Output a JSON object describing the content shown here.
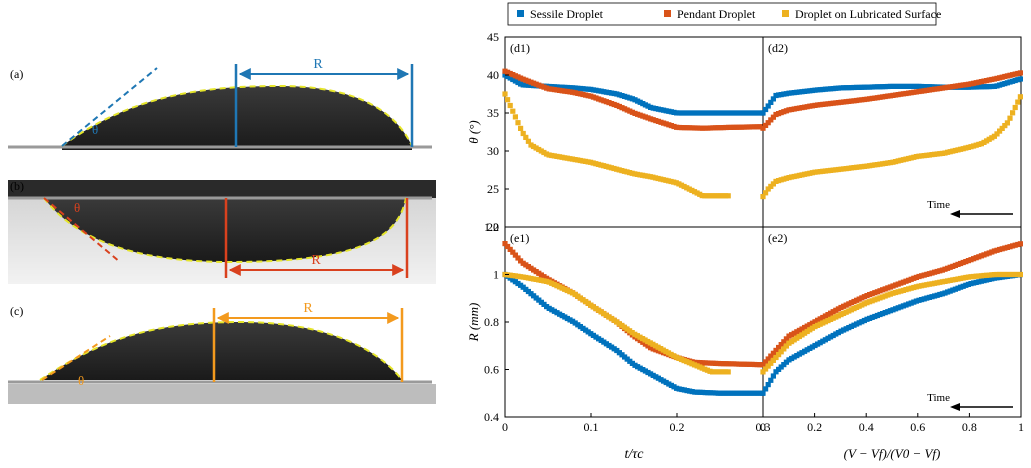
{
  "legend": [
    {
      "name": "Sessile Droplet",
      "color": "#0072BD"
    },
    {
      "name": "Pendant Droplet",
      "color": "#D95319"
    },
    {
      "name": "Droplet on Lubricated Surface",
      "color": "#EDB120"
    }
  ],
  "photos": {
    "a": {
      "label": "(a)",
      "r_label": "R",
      "theta_label": "θ",
      "color": "#1f77b4"
    },
    "b": {
      "label": "(b)",
      "r_label": "R",
      "theta_label": "θ",
      "color": "#d9411e"
    },
    "c": {
      "label": "(c)",
      "r_label": "R",
      "theta_label": "θ",
      "color": "#f39a1e"
    }
  },
  "time_label": "Time",
  "chart_data": [
    {
      "panel": "(d1)",
      "type": "scatter",
      "ylabel": "θ (°)",
      "xlim": [
        0,
        0.3
      ],
      "ylim": [
        20,
        45
      ],
      "yticks": [
        "45",
        "40",
        "35",
        "30",
        "25",
        "20"
      ],
      "series": [
        {
          "name": "Sessile Droplet",
          "x": [
            0,
            0.02,
            0.05,
            0.08,
            0.1,
            0.13,
            0.15,
            0.17,
            0.2,
            0.23,
            0.26,
            0.3
          ],
          "y": [
            40,
            38.7,
            38.5,
            38.3,
            38.1,
            37.5,
            36.8,
            35.7,
            35,
            35,
            35,
            35
          ]
        },
        {
          "name": "Pendant Droplet",
          "x": [
            0,
            0.02,
            0.05,
            0.08,
            0.1,
            0.13,
            0.15,
            0.17,
            0.2,
            0.23,
            0.26,
            0.3
          ],
          "y": [
            40.5,
            39.5,
            38.2,
            37.7,
            37.2,
            36,
            35,
            34.2,
            33.1,
            33,
            33.1,
            33.2
          ]
        },
        {
          "name": "Droplet on Lubricated Surface",
          "x": [
            0,
            0.01,
            0.02,
            0.03,
            0.05,
            0.08,
            0.1,
            0.13,
            0.15,
            0.17,
            0.2,
            0.23,
            0.26
          ],
          "y": [
            37.5,
            35,
            32.5,
            30.8,
            29.5,
            28.9,
            28.5,
            27.6,
            27,
            26.6,
            25.8,
            24.1,
            24.1
          ]
        }
      ]
    },
    {
      "panel": "(d2)",
      "type": "scatter",
      "xlim": [
        0,
        1
      ],
      "ylim": [
        20,
        45
      ],
      "series": [
        {
          "name": "Sessile Droplet",
          "x": [
            0,
            0.05,
            0.1,
            0.15,
            0.2,
            0.3,
            0.4,
            0.5,
            0.6,
            0.7,
            0.8,
            0.9,
            1
          ],
          "y": [
            35,
            37.3,
            37.6,
            37.8,
            38,
            38.3,
            38.4,
            38.5,
            38.5,
            38.4,
            38.4,
            38.5,
            39.5
          ]
        },
        {
          "name": "Pendant Droplet",
          "x": [
            0,
            0.05,
            0.1,
            0.2,
            0.3,
            0.4,
            0.5,
            0.6,
            0.7,
            0.8,
            0.9,
            1
          ],
          "y": [
            33,
            34.8,
            35.4,
            36,
            36.4,
            36.8,
            37.3,
            37.8,
            38.3,
            38.8,
            39.5,
            40.3
          ]
        },
        {
          "name": "Droplet on Lubricated Surface",
          "x": [
            0,
            0.02,
            0.05,
            0.1,
            0.2,
            0.3,
            0.4,
            0.5,
            0.6,
            0.7,
            0.8,
            0.85,
            0.9,
            0.95,
            1
          ],
          "y": [
            24,
            25,
            26,
            26.5,
            27.2,
            27.6,
            28,
            28.5,
            29.3,
            29.7,
            30.5,
            31,
            32,
            33.8,
            37.3
          ]
        }
      ]
    },
    {
      "panel": "(e1)",
      "type": "scatter",
      "ylabel": "R (mm)",
      "xlabel": "t/τc",
      "xlim": [
        0,
        0.3
      ],
      "ylim": [
        0.4,
        1.2
      ],
      "xticks": [
        "0",
        "0.1",
        "0.2",
        "0.3"
      ],
      "yticks": [
        "1.2",
        "1",
        "0.8",
        "0.6",
        "0.4"
      ],
      "series": [
        {
          "name": "Sessile Droplet",
          "x": [
            0,
            0.02,
            0.05,
            0.08,
            0.1,
            0.13,
            0.15,
            0.18,
            0.2,
            0.22,
            0.25,
            0.28,
            0.3
          ],
          "y": [
            1,
            0.95,
            0.86,
            0.8,
            0.75,
            0.68,
            0.62,
            0.56,
            0.52,
            0.505,
            0.5,
            0.5,
            0.5
          ]
        },
        {
          "name": "Pendant Droplet",
          "x": [
            0,
            0.02,
            0.05,
            0.08,
            0.1,
            0.13,
            0.15,
            0.17,
            0.2,
            0.22,
            0.25,
            0.3
          ],
          "y": [
            1.13,
            1.05,
            0.98,
            0.92,
            0.87,
            0.8,
            0.74,
            0.69,
            0.65,
            0.63,
            0.625,
            0.62
          ]
        },
        {
          "name": "Droplet on Lubricated Surface",
          "x": [
            0,
            0.02,
            0.05,
            0.08,
            0.1,
            0.13,
            0.15,
            0.18,
            0.2,
            0.22,
            0.24,
            0.26
          ],
          "y": [
            1,
            0.99,
            0.97,
            0.92,
            0.87,
            0.8,
            0.75,
            0.69,
            0.65,
            0.62,
            0.59,
            0.59
          ]
        }
      ]
    },
    {
      "panel": "(e2)",
      "type": "scatter",
      "xlabel": "(V − Vf)/(V0 − Vf)",
      "xlim": [
        0,
        1
      ],
      "ylim": [
        0.4,
        1.2
      ],
      "xticks": [
        "0",
        "0.2",
        "0.4",
        "0.6",
        "0.8",
        "1"
      ],
      "series": [
        {
          "name": "Sessile Droplet",
          "x": [
            0,
            0.05,
            0.1,
            0.2,
            0.3,
            0.4,
            0.5,
            0.6,
            0.7,
            0.8,
            0.9,
            1
          ],
          "y": [
            0.5,
            0.59,
            0.64,
            0.7,
            0.76,
            0.81,
            0.85,
            0.89,
            0.92,
            0.96,
            0.985,
            1
          ]
        },
        {
          "name": "Pendant Droplet",
          "x": [
            0,
            0.05,
            0.1,
            0.2,
            0.3,
            0.4,
            0.5,
            0.6,
            0.7,
            0.8,
            0.9,
            1
          ],
          "y": [
            0.62,
            0.68,
            0.74,
            0.8,
            0.86,
            0.91,
            0.95,
            0.99,
            1.02,
            1.06,
            1.1,
            1.13
          ]
        },
        {
          "name": "Droplet on Lubricated Surface",
          "x": [
            0,
            0.05,
            0.1,
            0.2,
            0.3,
            0.4,
            0.5,
            0.6,
            0.7,
            0.8,
            0.9,
            1
          ],
          "y": [
            0.59,
            0.65,
            0.71,
            0.78,
            0.83,
            0.88,
            0.92,
            0.95,
            0.97,
            0.99,
            1,
            1
          ]
        }
      ]
    }
  ]
}
